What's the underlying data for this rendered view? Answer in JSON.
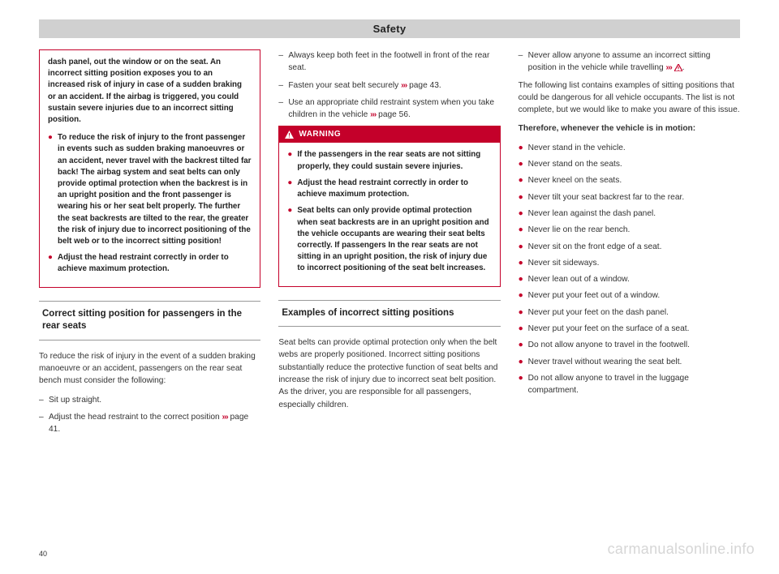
{
  "header": "Safety",
  "page_number": "40",
  "watermark": "carmanualsonline.info",
  "colors": {
    "accent": "#c4002a",
    "header_bg": "#d0d0d0",
    "text": "#333",
    "border": "#999"
  },
  "chevrons": "›››",
  "col1": {
    "warn_cont": {
      "p1": "dash panel, out the window or on the seat. An incorrect sitting position exposes you to an increased risk of injury in case of a sudden braking or an accident. If the airbag is triggered, you could sustain severe injuries due to an incorrect sitting position.",
      "b1": "To reduce the risk of injury to the front passenger in events such as sudden braking manoeuvres or an accident, never travel with the backrest tilted far back! The airbag system and seat belts can only provide optimal protection when the backrest is in an upright position and the front passenger is wearing his or her seat belt properly. The further the seat backrests are tilted to the rear, the greater the risk of injury due to incorrect positioning of the belt web or to the incorrect sitting position!",
      "b2": "Adjust the head restraint correctly in order to achieve maximum protection."
    },
    "sec1_title": "Correct sitting position for passengers in the rear seats",
    "sec1_intro": "To reduce the risk of injury in the event of a sudden braking manoeuvre or an accident, passengers on the rear seat bench must consider the following:",
    "sec1_d1": "Sit up straight.",
    "sec1_d2_a": "Adjust the head restraint to the correct position ",
    "sec1_d2_b": " page 41."
  },
  "col2": {
    "d1": "Always keep both feet in the footwell in front of the rear seat.",
    "d2_a": "Fasten your seat belt securely ",
    "d2_b": " page 43.",
    "d3_a": "Use an appropriate child restraint system when you take children in the vehicle ",
    "d3_b": " page 56.",
    "warn_label": "WARNING",
    "warn": {
      "b1": "If the passengers in the rear seats are not sitting properly, they could sustain severe injuries.",
      "b2": "Adjust the head restraint correctly in order to achieve maximum protection.",
      "b3": "Seat belts can only provide optimal protection when seat backrests are in an upright position and the vehicle occupants are wearing their seat belts correctly. If passengers In the rear seats are not sitting in an upright position, the risk of injury due to incorrect positioning of the seat belt increases."
    },
    "sec2_title": "Examples of incorrect sitting positions",
    "sec2_p": "Seat belts can provide optimal protection only when the belt webs are properly positioned. Incorrect sitting positions substantially reduce the protective function of seat belts and increase the risk of injury due to incorrect seat belt position. As the driver, you are responsible for all passengers, especially children."
  },
  "col3": {
    "d1_a": "Never allow anyone to assume an incorrect sitting position in the vehicle while travelling ",
    "d1_b": ".",
    "p1": "The following list contains examples of sitting positions that could be dangerous for all vehicle occupants. The list is not complete, but we would like to make you aware of this issue.",
    "p2": "Therefore, whenever the vehicle is in motion:",
    "bullets": [
      "Never stand in the vehicle.",
      "Never stand on the seats.",
      "Never kneel on the seats.",
      "Never tilt your seat backrest far to the rear.",
      "Never lean against the dash panel.",
      "Never lie on the rear bench.",
      "Never sit on the front edge of a seat.",
      "Never sit sideways.",
      "Never lean out of a window.",
      "Never put your feet out of a window.",
      "Never put your feet on the dash panel.",
      "Never put your feet on the surface of a seat.",
      "Do not allow anyone to travel in the footwell.",
      "Never travel without wearing the seat belt.",
      "Do not allow anyone to travel in the luggage compartment."
    ]
  }
}
